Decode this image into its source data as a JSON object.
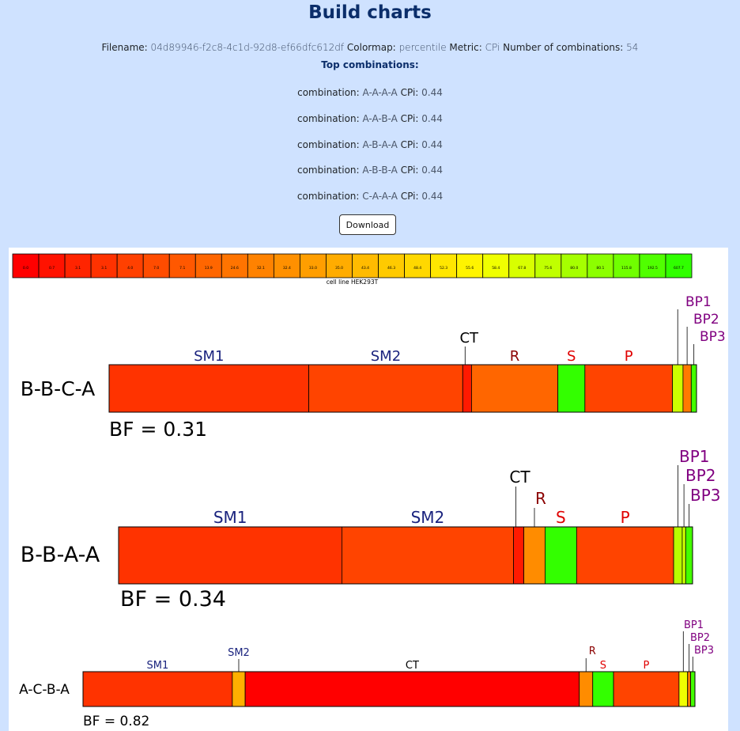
{
  "page": {
    "title": "Build charts",
    "meta": {
      "filename_label": "Filename:",
      "filename": "04d89946-f2c8-4c1d-92d8-ef66dfc612df",
      "colormap_label": "Colormap:",
      "colormap": "percentile",
      "metric_label": "Metric:",
      "metric": "CPi",
      "combos_label": "Number of combinations:",
      "combos": "54"
    },
    "top_heading": "Top combinations:",
    "top_combinations": [
      {
        "label": "combination:",
        "combo": "A-A-A-A",
        "metric": "CPi:",
        "value": "0.44"
      },
      {
        "label": "combination:",
        "combo": "A-A-B-A",
        "metric": "CPi:",
        "value": "0.44"
      },
      {
        "label": "combination:",
        "combo": "A-B-A-A",
        "metric": "CPi:",
        "value": "0.44"
      },
      {
        "label": "combination:",
        "combo": "A-B-B-A",
        "metric": "CPi:",
        "value": "0.44"
      },
      {
        "label": "combination:",
        "combo": "C-A-A-A",
        "metric": "CPi:",
        "value": "0.44"
      }
    ],
    "download_label": "Download"
  },
  "colors": {
    "page_bg": "#cfe2ff",
    "title": "#0b2e6a",
    "sm_label": "#1a237e",
    "r_label": "#8b0000",
    "s_p_label": "#e00000",
    "bp_label": "#800080"
  },
  "chart_data": {
    "type": "heatmap",
    "legend": {
      "values": [
        "0.0",
        "0.7",
        "3.1",
        "3.1",
        "4.0",
        "7.0",
        "7.1",
        "13.9",
        "24.6",
        "32.1",
        "32.4",
        "33.0",
        "35.0",
        "43.4",
        "46.3",
        "48.4",
        "52.3",
        "55.6",
        "58.4",
        "67.8",
        "75.6",
        "80.0",
        "80.1",
        "115.8",
        "192.5",
        "607.7"
      ],
      "colors": [
        "#ff0000",
        "#ff1200",
        "#ff2400",
        "#ff3200",
        "#ff4000",
        "#ff4c00",
        "#ff5800",
        "#ff6600",
        "#ff7400",
        "#ff8200",
        "#ff9000",
        "#ff9e00",
        "#ffac00",
        "#ffbb00",
        "#ffca00",
        "#ffd800",
        "#ffe600",
        "#fff400",
        "#f0ff00",
        "#d8ff00",
        "#c0ff00",
        "#a6ff00",
        "#8cff00",
        "#70ff00",
        "#50ff00",
        "#30ff00"
      ],
      "caption": "cell line HEK293T"
    },
    "constructs": [
      {
        "name": "B-B-C-A",
        "bf": "BF = 0.31",
        "segments": [
          {
            "name": "SM1",
            "rel": 0.34,
            "color": "#ff3300"
          },
          {
            "name": "SM2",
            "rel": 0.262,
            "color": "#ff4400"
          },
          {
            "name": "CT",
            "rel": 0.015,
            "color": "#ff1a00"
          },
          {
            "name": "R",
            "rel": 0.147,
            "color": "#ff6600"
          },
          {
            "name": "S",
            "rel": 0.046,
            "color": "#33ff00"
          },
          {
            "name": "P",
            "rel": 0.149,
            "color": "#ff4400"
          },
          {
            "name": "BP1",
            "rel": 0.018,
            "color": "#ccff00"
          },
          {
            "name": "BP2",
            "rel": 0.014,
            "color": "#ff7a00"
          },
          {
            "name": "BP3",
            "rel": 0.009,
            "color": "#44ff00"
          }
        ]
      },
      {
        "name": "B-B-A-A",
        "bf": "BF = 0.34",
        "segments": [
          {
            "name": "SM1",
            "rel": 0.389,
            "color": "#ff3300"
          },
          {
            "name": "SM2",
            "rel": 0.299,
            "color": "#ff4400"
          },
          {
            "name": "CT",
            "rel": 0.018,
            "color": "#ff1a00"
          },
          {
            "name": "R",
            "rel": 0.037,
            "color": "#ff8c00"
          },
          {
            "name": "S",
            "rel": 0.055,
            "color": "#33ff00"
          },
          {
            "name": "P",
            "rel": 0.169,
            "color": "#ff4400"
          },
          {
            "name": "BP1",
            "rel": 0.015,
            "color": "#b8ff00"
          },
          {
            "name": "BP2",
            "rel": 0.006,
            "color": "#ccff00"
          },
          {
            "name": "BP3",
            "rel": 0.012,
            "color": "#44ff00"
          }
        ]
      },
      {
        "name": "A-C-B-A",
        "bf": "BF = 0.82",
        "segments": [
          {
            "name": "SM1",
            "rel": 0.244,
            "color": "#ff3300"
          },
          {
            "name": "SM2",
            "rel": 0.021,
            "color": "#ffb000"
          },
          {
            "name": "CT",
            "rel": 0.546,
            "color": "#ff0000"
          },
          {
            "name": "R",
            "rel": 0.022,
            "color": "#ff8c00"
          },
          {
            "name": "S",
            "rel": 0.034,
            "color": "#33ff00"
          },
          {
            "name": "P",
            "rel": 0.107,
            "color": "#ff4400"
          },
          {
            "name": "BP1",
            "rel": 0.014,
            "color": "#f0ff00"
          },
          {
            "name": "BP2",
            "rel": 0.005,
            "color": "#ff7a00"
          },
          {
            "name": "BP3",
            "rel": 0.007,
            "color": "#44ff00"
          }
        ]
      }
    ]
  }
}
